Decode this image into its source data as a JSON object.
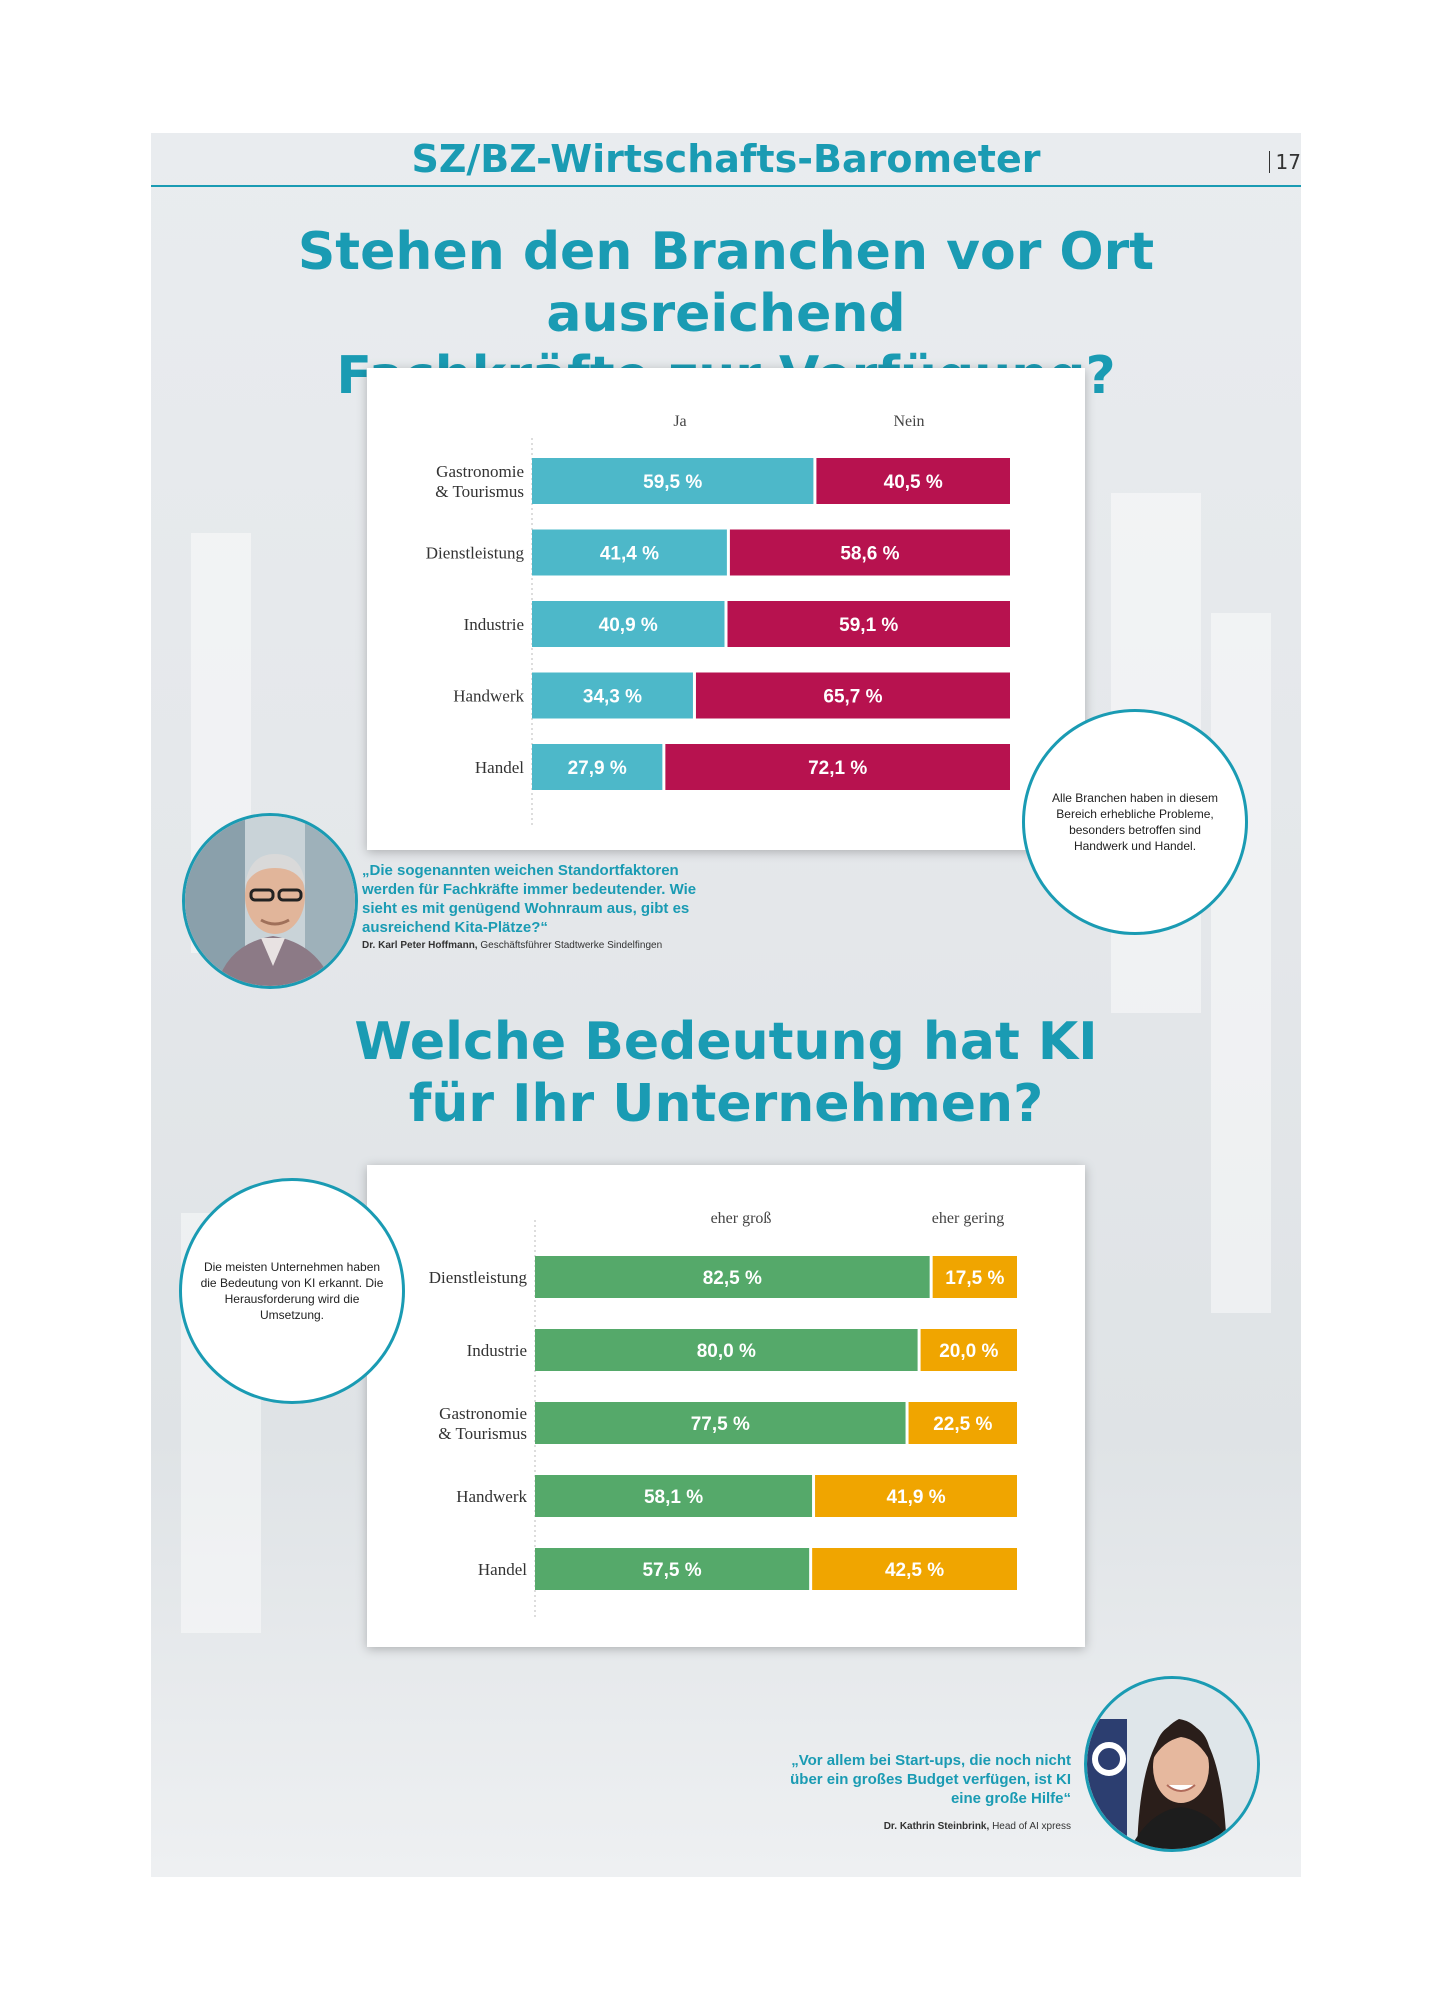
{
  "header": {
    "title": "SZ/BZ-Wirtschafts-Barometer",
    "page_number": "17"
  },
  "section1": {
    "heading_line1": "Stehen den Branchen vor Ort ausreichend",
    "heading_line2": "Fachkräfte zur Verfügung?",
    "callout": "Alle Branchen haben in diesem Bereich erhebliche Probleme, besonders betroffen sind Handwerk und Handel.",
    "quote": "„Die sogenannten weichen Standortfaktoren werden für Fachkräfte immer bedeutender. Wie sieht es mit genügend Wohnraum aus, gibt es ausreichend Kita-Plätze?“",
    "quote_author": "Dr. Karl Peter Hoffmann,",
    "quote_role": "Geschäftsführer Stadtwerke Sindelfingen"
  },
  "section2": {
    "heading_line1": "Welche Bedeutung hat KI",
    "heading_line2": "für Ihr Unternehmen?",
    "callout": "Die meisten Unternehmen haben die Bedeutung von KI erkannt. Die Herausforderung wird die Umsetzung.",
    "quote": "„Vor allem bei Start-ups, die noch nicht über ein großes Budget verfügen, ist KI eine große Hilfe“",
    "quote_author": "Dr. Kathrin Steinbrink,",
    "quote_role": "Head of AI xpress"
  },
  "chart_data": [
    {
      "type": "bar",
      "stacked": true,
      "orientation": "horizontal",
      "categories": [
        "Gastronomie & Tourismus",
        "Dienstleistung",
        "Industrie",
        "Handwerk",
        "Handel"
      ],
      "series": [
        {
          "name": "Ja",
          "values": [
            59.5,
            41.4,
            40.9,
            34.3,
            27.9
          ],
          "labels": [
            "59,5 %",
            "41,4 %",
            "40,9 %",
            "34,3 %",
            "27,9 %"
          ],
          "color": "#4db8c9"
        },
        {
          "name": "Nein",
          "values": [
            40.5,
            58.6,
            59.1,
            65.7,
            72.1
          ],
          "labels": [
            "40,5 %",
            "58,6 %",
            "59,1 %",
            "65,7 %",
            "72,1 %"
          ],
          "color": "#b7124f"
        }
      ],
      "xlim": [
        0,
        100
      ],
      "legend": "top"
    },
    {
      "type": "bar",
      "stacked": true,
      "orientation": "horizontal",
      "categories": [
        "Dienstleistung",
        "Industrie",
        "Gastronomie & Tourismus",
        "Handwerk",
        "Handel"
      ],
      "series": [
        {
          "name": "eher groß",
          "values": [
            82.5,
            80.0,
            77.5,
            58.1,
            57.5
          ],
          "labels": [
            "82,5 %",
            "80,0 %",
            "77,5 %",
            "58,1 %",
            "57,5 %"
          ],
          "color": "#55a96a"
        },
        {
          "name": "eher gering",
          "values": [
            17.5,
            20.0,
            22.5,
            41.9,
            42.5
          ],
          "labels": [
            "17,5 %",
            "20,0 %",
            "22,5 %",
            "41,9 %",
            "42,5 %"
          ],
          "color": "#f0a500"
        }
      ],
      "xlim": [
        0,
        100
      ],
      "legend": "top"
    }
  ]
}
